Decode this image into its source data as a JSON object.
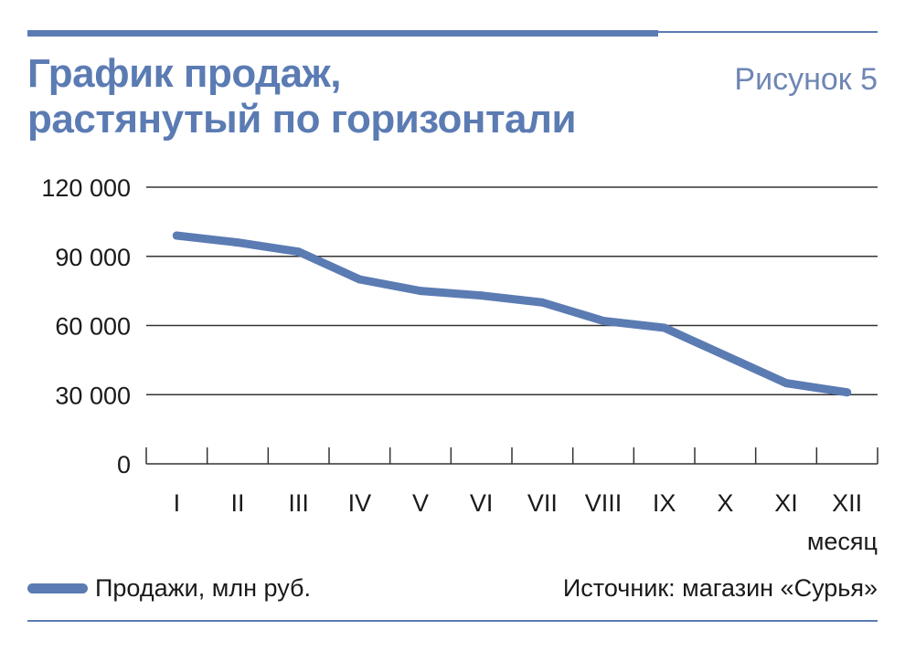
{
  "header": {
    "title_line1": "График продаж,",
    "title_line2": "растянутый по горизонтали",
    "figure_label": "Рисунок 5"
  },
  "chart_data": {
    "type": "line",
    "title": "График продаж, растянутый по горизонтали",
    "categories": [
      "I",
      "II",
      "III",
      "IV",
      "V",
      "VI",
      "VII",
      "VIII",
      "IX",
      "X",
      "XI",
      "XII"
    ],
    "series": [
      {
        "name": "Продажи, млн руб.",
        "values": [
          99000,
          96000,
          92000,
          80000,
          75000,
          73000,
          70000,
          62000,
          59000,
          47000,
          35000,
          31000
        ]
      }
    ],
    "xlabel": "месяц",
    "ylabel": "",
    "ylim": [
      0,
      120000
    ],
    "yticks": [
      0,
      30000,
      60000,
      90000,
      120000
    ],
    "ytick_labels": [
      "0",
      "30 000",
      "60 000",
      "90 000",
      "120 000"
    ],
    "grid": true,
    "line_color": "#5b7bb3"
  },
  "legend": {
    "label": "Продажи, млн руб."
  },
  "source": {
    "text": "Источник: магазин «Сурья»"
  },
  "colors": {
    "accent": "#5b7bb3",
    "text": "#1a1a1a",
    "grid": "#333333"
  }
}
